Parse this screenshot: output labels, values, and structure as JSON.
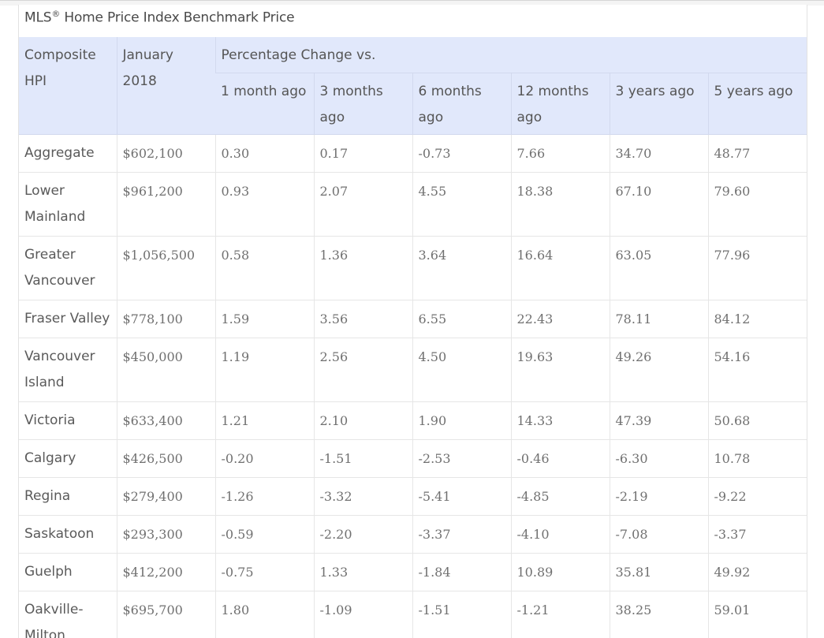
{
  "caption": {
    "prefix": "MLS",
    "reg": "®",
    "rest": " Home Price Index Benchmark Price"
  },
  "header": {
    "composite": "Composite HPI",
    "price_col": "January 2018",
    "change_group": "Percentage Change vs.",
    "periods": [
      "1 month ago",
      "3 months ago",
      "6 months ago",
      "12 months ago",
      "3 years ago",
      "5 years ago"
    ]
  },
  "rows": [
    {
      "name": "Aggregate",
      "price": "$602,100",
      "m1": "0.30",
      "m3": "0.17",
      "m6": "-0.73",
      "m12": "7.66",
      "y3": "34.70",
      "y5": "48.77"
    },
    {
      "name": "Lower Mainland",
      "price": "$961,200",
      "m1": "0.93",
      "m3": "2.07",
      "m6": "4.55",
      "m12": "18.38",
      "y3": "67.10",
      "y5": "79.60"
    },
    {
      "name": "Greater Vancouver",
      "price": "$1,056,500",
      "m1": "0.58",
      "m3": "1.36",
      "m6": "3.64",
      "m12": "16.64",
      "y3": "63.05",
      "y5": "77.96"
    },
    {
      "name": "Fraser Valley",
      "price": "$778,100",
      "m1": "1.59",
      "m3": "3.56",
      "m6": "6.55",
      "m12": "22.43",
      "y3": "78.11",
      "y5": "84.12"
    },
    {
      "name": "Vancouver Island",
      "price": "$450,000",
      "m1": "1.19",
      "m3": "2.56",
      "m6": "4.50",
      "m12": "19.63",
      "y3": "49.26",
      "y5": "54.16"
    },
    {
      "name": "Victoria",
      "price": "$633,400",
      "m1": "1.21",
      "m3": "2.10",
      "m6": "1.90",
      "m12": "14.33",
      "y3": "47.39",
      "y5": "50.68"
    },
    {
      "name": "Calgary",
      "price": "$426,500",
      "m1": "-0.20",
      "m3": "-1.51",
      "m6": "-2.53",
      "m12": "-0.46",
      "y3": "-6.30",
      "y5": "10.78"
    },
    {
      "name": "Regina",
      "price": "$279,400",
      "m1": "-1.26",
      "m3": "-3.32",
      "m6": "-5.41",
      "m12": "-4.85",
      "y3": "-2.19",
      "y5": "-9.22"
    },
    {
      "name": "Saskatoon",
      "price": "$293,300",
      "m1": "-0.59",
      "m3": "-2.20",
      "m6": "-3.37",
      "m12": "-4.10",
      "y3": "-7.08",
      "y5": "-3.37"
    },
    {
      "name": "Guelph",
      "price": "$412,200",
      "m1": "-0.75",
      "m3": "1.33",
      "m6": "-1.84",
      "m12": "10.89",
      "y3": "35.81",
      "y5": "49.92"
    },
    {
      "name": "Oakville-Milton",
      "price": "$695,700",
      "m1": "1.80",
      "m3": "-1.09",
      "m6": "-1.51",
      "m12": "-1.21",
      "y3": "38.25",
      "y5": "59.01"
    }
  ]
}
